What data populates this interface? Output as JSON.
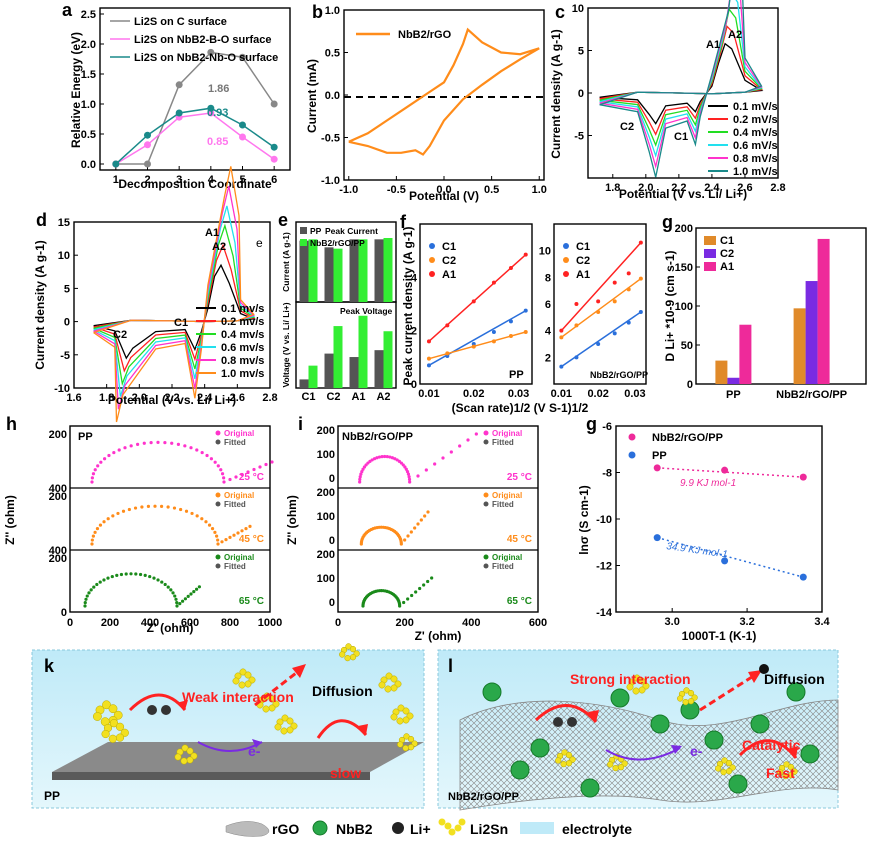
{
  "panels": {
    "a": "a",
    "b": "b",
    "c": "c",
    "d": "d",
    "e": "e",
    "f": "f",
    "g1": "g",
    "h": "h",
    "i": "i",
    "g2": "g",
    "k": "k",
    "l": "l"
  },
  "colors": {
    "black": "#000000",
    "red": "#ff2222",
    "green": "#22dd22",
    "cyan": "#22e0ee",
    "magenta": "#ff33cc",
    "teal": "#1a8a8a",
    "orange": "#ff8c1a",
    "blue": "#2a6fdb",
    "pink": "#ee2a9a",
    "purple": "#7a2be2",
    "gray": "#888888",
    "lightmag": "#ff77ee",
    "bargreen": "#33ee33",
    "bargray": "#555555",
    "darkgreen": "#1a6a1a"
  },
  "chart_data": [
    {
      "id": "a",
      "type": "line",
      "xlabel": "Decomposition Coordinate",
      "ylabel": "Relative Energy (eV)",
      "x": [
        1,
        2,
        3,
        4,
        5,
        6
      ],
      "xlim": [
        0.5,
        6.5
      ],
      "ylim": [
        -0.1,
        2.6
      ],
      "xticks": [
        "1",
        "2",
        "3",
        "4",
        "5",
        "6"
      ],
      "yticks": [
        "0.0",
        "0.5",
        "1.0",
        "1.5",
        "2.0",
        "2.5"
      ],
      "series": [
        {
          "name": "Li2S on C surface",
          "color": "#888888",
          "values": [
            0,
            0,
            1.32,
            1.86,
            1.78,
            1.0
          ]
        },
        {
          "name": "Li2S on NbB2-B-O surface",
          "color": "#ff77ee",
          "values": [
            0,
            0.32,
            0.78,
            0.85,
            0.45,
            0.08
          ]
        },
        {
          "name": "Li2S on NbB2-Nb-O surface",
          "color": "#1a8a8a",
          "values": [
            0,
            0.48,
            0.85,
            0.93,
            0.65,
            0.28
          ]
        }
      ],
      "annotations": [
        "1.86",
        "0.93",
        "0.85"
      ]
    },
    {
      "id": "b",
      "type": "line",
      "xlabel": "Potential (V)",
      "ylabel": "Current (mA)",
      "xlim": [
        -1.05,
        1.05
      ],
      "ylim": [
        -1.0,
        1.0
      ],
      "xticks": [
        "-1.0",
        "-0.5",
        "0.0",
        "0.5",
        "1.0"
      ],
      "yticks": [
        "-1.0",
        "-0.5",
        "0.0",
        "0.5",
        "1.0"
      ],
      "series": [
        {
          "name": "NbB2/rGO",
          "color": "#ff8c1a"
        }
      ]
    },
    {
      "id": "c",
      "type": "line",
      "xlabel": "Potential (V vs. Li/ Li+)",
      "ylabel": "Current density (A g-1)",
      "xlim": [
        1.65,
        2.8
      ],
      "ylim": [
        -10,
        10
      ],
      "xticks": [
        "1.8",
        "2.0",
        "2.2",
        "2.4",
        "2.6",
        "2.8"
      ],
      "yticks": [
        "-5",
        "0",
        "5",
        "10"
      ],
      "series": [
        {
          "name": "0.1 mV/s",
          "color": "#000000"
        },
        {
          "name": "0.2 mV/s",
          "color": "#ff2222"
        },
        {
          "name": "0.4 mV/s",
          "color": "#22dd22"
        },
        {
          "name": "0.6 mV/s",
          "color": "#22e0ee"
        },
        {
          "name": "0.8 mV/s",
          "color": "#ff33cc"
        },
        {
          "name": "1.0 mV/s",
          "color": "#1a8a8a"
        }
      ],
      "peak_labels": [
        "A1",
        "A2",
        "C2",
        "C1"
      ]
    },
    {
      "id": "d",
      "type": "line",
      "xlabel": "Potential (V vs. Li/ Li+)",
      "ylabel": "Current density (A g-1)",
      "xlim": [
        1.6,
        2.8
      ],
      "ylim": [
        -10,
        15
      ],
      "xticks": [
        "1.6",
        "1.8",
        "2.0",
        "2.2",
        "2.4",
        "2.6",
        "2.8"
      ],
      "yticks": [
        "-10",
        "-5",
        "0",
        "5",
        "10",
        "15"
      ],
      "series": [
        {
          "name": "0.1 mv/s",
          "color": "#000000"
        },
        {
          "name": "0.2 mv/s",
          "color": "#ff2222"
        },
        {
          "name": "0.4 mv/s",
          "color": "#22dd22"
        },
        {
          "name": "0.6 mv/s",
          "color": "#22e0ee"
        },
        {
          "name": "0.8 mv/s",
          "color": "#ff33cc"
        },
        {
          "name": "1.0 mv/s",
          "color": "#ff8c1a"
        }
      ],
      "peak_labels": [
        "A1",
        "A2",
        "C2",
        "C1"
      ],
      "extra_label": "e"
    },
    {
      "id": "e",
      "type": "bar",
      "categories": [
        "C1",
        "C2",
        "A1",
        "A2"
      ],
      "series": [
        {
          "name": "PP",
          "color": "#555555"
        },
        {
          "name": "NbB2/rGO/PP",
          "color": "#33ee33"
        }
      ],
      "top": {
        "title": "Peak Current",
        "ylabel": "Current (A g-1)",
        "ylim": [
          0,
          3
        ],
        "pp": [
          2.3,
          2.05,
          2.35,
          2.35
        ],
        "nb": [
          2.35,
          2.0,
          2.35,
          2.4
        ]
      },
      "bottom": {
        "title": "Peak Voltage",
        "ylabel": "Voltage (V vs. Li/ Li+)",
        "ylim": [
          0,
          5
        ],
        "pp": [
          0.5,
          2.0,
          1.8,
          2.2
        ],
        "nb": [
          1.3,
          3.6,
          4.2,
          3.3
        ]
      }
    },
    {
      "id": "f",
      "type": "scatter",
      "xlabel": "(Scan rate)1/2 (V S-1)1/2",
      "ylabel": "Peak current density (A g-1)",
      "left": {
        "label": "PP",
        "xlim": [
          0.008,
          0.033
        ],
        "ylim": [
          0,
          6
        ],
        "yticks": [
          "0",
          "2",
          "4"
        ],
        "xticks": [
          "0.01",
          "0.02",
          "0.03"
        ],
        "series": [
          {
            "name": "C1",
            "color": "#2a6fdb",
            "x": [
              0.01,
              0.0141,
              0.02,
              0.0245,
              0.0283,
              0.0316
            ],
            "y": [
              0.7,
              1.05,
              1.5,
              1.95,
              2.35,
              2.75
            ]
          },
          {
            "name": "C2",
            "color": "#ff8c1a",
            "x": [
              0.01,
              0.0141,
              0.02,
              0.0245,
              0.0283,
              0.0316
            ],
            "y": [
              0.95,
              1.15,
              1.4,
              1.6,
              1.8,
              1.95
            ]
          },
          {
            "name": "A1",
            "color": "#ff2222",
            "x": [
              0.01,
              0.0141,
              0.02,
              0.0245,
              0.0283,
              0.0316
            ],
            "y": [
              1.6,
              2.2,
              3.1,
              3.8,
              4.35,
              4.85
            ]
          }
        ]
      },
      "right": {
        "label": "NbB2/rGO/PP",
        "xlim": [
          0.008,
          0.033
        ],
        "ylim": [
          0,
          12
        ],
        "yticks": [
          "2",
          "4",
          "6",
          "8",
          "10"
        ],
        "xticks": [
          "0.01",
          "0.02",
          "0.03"
        ],
        "series": [
          {
            "name": "C1",
            "color": "#2a6fdb",
            "x": [
              0.01,
              0.0141,
              0.02,
              0.0245,
              0.0283,
              0.0316
            ],
            "y": [
              1.3,
              2.0,
              3.0,
              3.8,
              4.6,
              5.4
            ]
          },
          {
            "name": "C2",
            "color": "#ff8c1a",
            "x": [
              0.01,
              0.0141,
              0.02,
              0.0245,
              0.0283,
              0.0316
            ],
            "y": [
              3.5,
              4.4,
              5.4,
              6.2,
              7.1,
              7.9
            ]
          },
          {
            "name": "A1",
            "color": "#ff2222",
            "x": [
              0.01,
              0.0141,
              0.02,
              0.0245,
              0.0283,
              0.0316
            ],
            "y": [
              4.0,
              6.0,
              6.2,
              7.6,
              8.3,
              10.6
            ]
          }
        ]
      }
    },
    {
      "id": "g1",
      "type": "bar",
      "ylabel": "D Li+ *10-9 (cm s-1)",
      "ylim": [
        0,
        200
      ],
      "yticks": [
        "0",
        "50",
        "100",
        "150",
        "200"
      ],
      "categories": [
        "PP",
        "NbB2/rGO/PP"
      ],
      "series": [
        {
          "name": "C1",
          "color": "#e08a2a",
          "values": [
            30,
            97
          ]
        },
        {
          "name": "C2",
          "color": "#7a2be2",
          "values": [
            8,
            132
          ]
        },
        {
          "name": "A1",
          "color": "#ee2a9a",
          "values": [
            76,
            186
          ]
        }
      ]
    },
    {
      "id": "h",
      "type": "scatter",
      "xlabel": "Z' (ohm)",
      "ylabel": "Z'' (ohm)",
      "label": "PP",
      "xlim": [
        0,
        1000
      ],
      "xticks": [
        "0",
        "200",
        "400",
        "600",
        "800",
        "1000"
      ],
      "rows": [
        {
          "temp": "25 °C",
          "color": "#ff33cc",
          "ytop": "200",
          "ybot": "400"
        },
        {
          "temp": "45 °C",
          "color": "#ff8c1a",
          "ytop": "200",
          "ybot": "400"
        },
        {
          "temp": "65 °C",
          "color": "#1a8a1a",
          "ytop": "200",
          "ybot": "0"
        }
      ],
      "legend": [
        "Original",
        "Fitted"
      ]
    },
    {
      "id": "i",
      "type": "scatter",
      "xlabel": "Z' (ohm)",
      "ylabel": "Z'' (ohm)",
      "label": "NbB2/rGO/PP",
      "xlim": [
        0,
        600
      ],
      "xticks": [
        "0",
        "200",
        "400",
        "600"
      ],
      "rows": [
        {
          "temp": "25 °C",
          "color": "#ff33cc",
          "yticks": [
            "200",
            "100",
            "0"
          ]
        },
        {
          "temp": "45 °C",
          "color": "#ff8c1a",
          "yticks": [
            "200",
            "100",
            "0"
          ]
        },
        {
          "temp": "65 °C",
          "color": "#1a8a1a",
          "yticks": [
            "200",
            "100",
            "0"
          ]
        }
      ],
      "legend": [
        "Original",
        "Fitted"
      ]
    },
    {
      "id": "g2",
      "type": "scatter",
      "xlabel": "1000T-1 (K-1)",
      "ylabel": "lnσ (S cm-1)",
      "xlim": [
        2.85,
        3.4
      ],
      "ylim": [
        -14,
        -6
      ],
      "xticks": [
        "3.0",
        "3.2",
        "3.4"
      ],
      "yticks": [
        "-6",
        "-8",
        "-10",
        "-12",
        "-14"
      ],
      "series": [
        {
          "name": "NbB2/rGO/PP",
          "color": "#ee2a9a",
          "x": [
            2.96,
            3.14,
            3.35
          ],
          "y": [
            -7.8,
            -7.9,
            -8.2
          ],
          "annotation": "9.9 KJ mol-1"
        },
        {
          "name": "PP",
          "color": "#2a6fdb",
          "x": [
            2.96,
            3.14,
            3.35
          ],
          "y": [
            -10.8,
            -11.8,
            -12.5
          ],
          "annotation": "34.9 KJ mol-1"
        }
      ]
    }
  ],
  "schematic": {
    "k": {
      "label": "PP",
      "weak": "Weak interaction",
      "diffusion": "Diffusion",
      "slow": "slow",
      "electron": "e-"
    },
    "l": {
      "label": "NbB2/rGO/PP",
      "strong": "Strong interaction",
      "diffusion": "Diffusion",
      "catalytic": "Catalytic",
      "fast": "Fast",
      "electron": "e-"
    },
    "legend": {
      "rgo": "rGO",
      "nbb2": "NbB2",
      "li": "Li+",
      "li2sn": "Li2Sn",
      "electrolyte": "electrolyte"
    }
  }
}
